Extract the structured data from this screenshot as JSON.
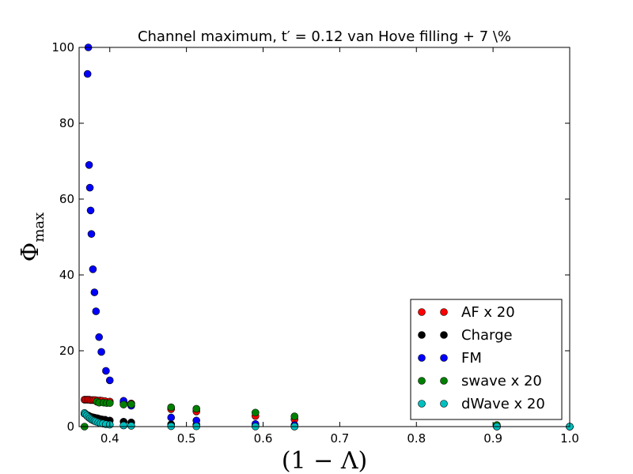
{
  "chart_data": {
    "type": "scatter",
    "title": "Channel maximum, t′ = 0.12 van Hove filling + 7 \\%",
    "xlabel": "(1 − Λ)",
    "ylabel_main": "Φ",
    "ylabel_sub": "max",
    "xlim": [
      0.36,
      1.0
    ],
    "ylim": [
      0,
      100
    ],
    "xticks": [
      0.4,
      0.5,
      0.6,
      0.7,
      0.8,
      0.9,
      1.0
    ],
    "xtick_labels": [
      "0.4",
      "0.5",
      "0.6",
      "0.7",
      "0.8",
      "0.9",
      "1.0"
    ],
    "yticks": [
      0,
      20,
      40,
      60,
      80,
      100
    ],
    "ytick_labels": [
      "0",
      "20",
      "40",
      "60",
      "80",
      "100"
    ],
    "grid": false,
    "legend_position": "lower-right",
    "series": [
      {
        "name": "AF x 20",
        "color": "#ff0000",
        "x": [
          0.367,
          0.369,
          0.371,
          0.373,
          0.375,
          0.377,
          0.379,
          0.381,
          0.384,
          0.387,
          0.39,
          0.394,
          0.4,
          0.418,
          0.428,
          0.48,
          0.513,
          0.59,
          0.641,
          0.905,
          1.0
        ],
        "y": [
          7.1,
          7.1,
          7.1,
          7.1,
          7.0,
          7.0,
          7.0,
          7.0,
          6.9,
          6.9,
          6.8,
          6.7,
          6.6,
          6.4,
          6.1,
          4.6,
          4.0,
          2.8,
          1.9,
          0.1,
          0.0
        ]
      },
      {
        "name": "Charge",
        "color": "#000000",
        "x": [
          0.367,
          0.369,
          0.371,
          0.373,
          0.375,
          0.377,
          0.379,
          0.381,
          0.384,
          0.387,
          0.39,
          0.394,
          0.4,
          0.418,
          0.428,
          0.48,
          0.513,
          0.59,
          0.641,
          0.905,
          1.0
        ],
        "y": [
          3.4,
          3.2,
          3.0,
          2.8,
          2.6,
          2.5,
          2.4,
          2.3,
          2.2,
          2.0,
          1.9,
          1.8,
          1.6,
          1.3,
          1.1,
          0.6,
          0.5,
          0.3,
          0.2,
          0.0,
          0.0
        ]
      },
      {
        "name": "FM",
        "color": "#0000ff",
        "x": [
          0.372,
          0.371,
          0.373,
          0.374,
          0.375,
          0.376,
          0.378,
          0.38,
          0.382,
          0.386,
          0.389,
          0.395,
          0.4,
          0.418,
          0.428,
          0.48,
          0.513,
          0.59,
          0.641,
          0.905,
          1.0
        ],
        "y": [
          100,
          93,
          69,
          63,
          57,
          50.8,
          41.5,
          35.4,
          30.4,
          23.6,
          19.7,
          14.7,
          12.2,
          6.8,
          5.5,
          2.4,
          1.6,
          0.7,
          0.4,
          0.05,
          0.0
        ]
      },
      {
        "name": "swave x 20",
        "color": "#008000",
        "x": [
          0.367,
          0.383,
          0.386,
          0.392,
          0.396,
          0.4,
          0.418,
          0.428,
          0.48,
          0.513,
          0.59,
          0.641,
          0.905,
          1.0
        ],
        "y": [
          0.0,
          6.6,
          6.3,
          6.3,
          6.2,
          6.2,
          5.8,
          5.9,
          5.1,
          4.7,
          3.7,
          2.7,
          0.4,
          0.0
        ]
      },
      {
        "name": "dWave x 20",
        "color": "#00bfbf",
        "x": [
          0.367,
          0.368,
          0.37,
          0.372,
          0.374,
          0.376,
          0.378,
          0.38,
          0.382,
          0.385,
          0.388,
          0.391,
          0.395,
          0.4,
          0.418,
          0.428,
          0.48,
          0.513,
          0.59,
          0.641,
          0.905,
          1.0
        ],
        "y": [
          3.6,
          3.3,
          2.9,
          2.5,
          2.2,
          1.9,
          1.7,
          1.5,
          1.3,
          1.1,
          0.9,
          0.8,
          0.6,
          0.5,
          0.3,
          0.2,
          0.1,
          0.05,
          0.02,
          0.01,
          0.0,
          0.0
        ]
      }
    ]
  }
}
